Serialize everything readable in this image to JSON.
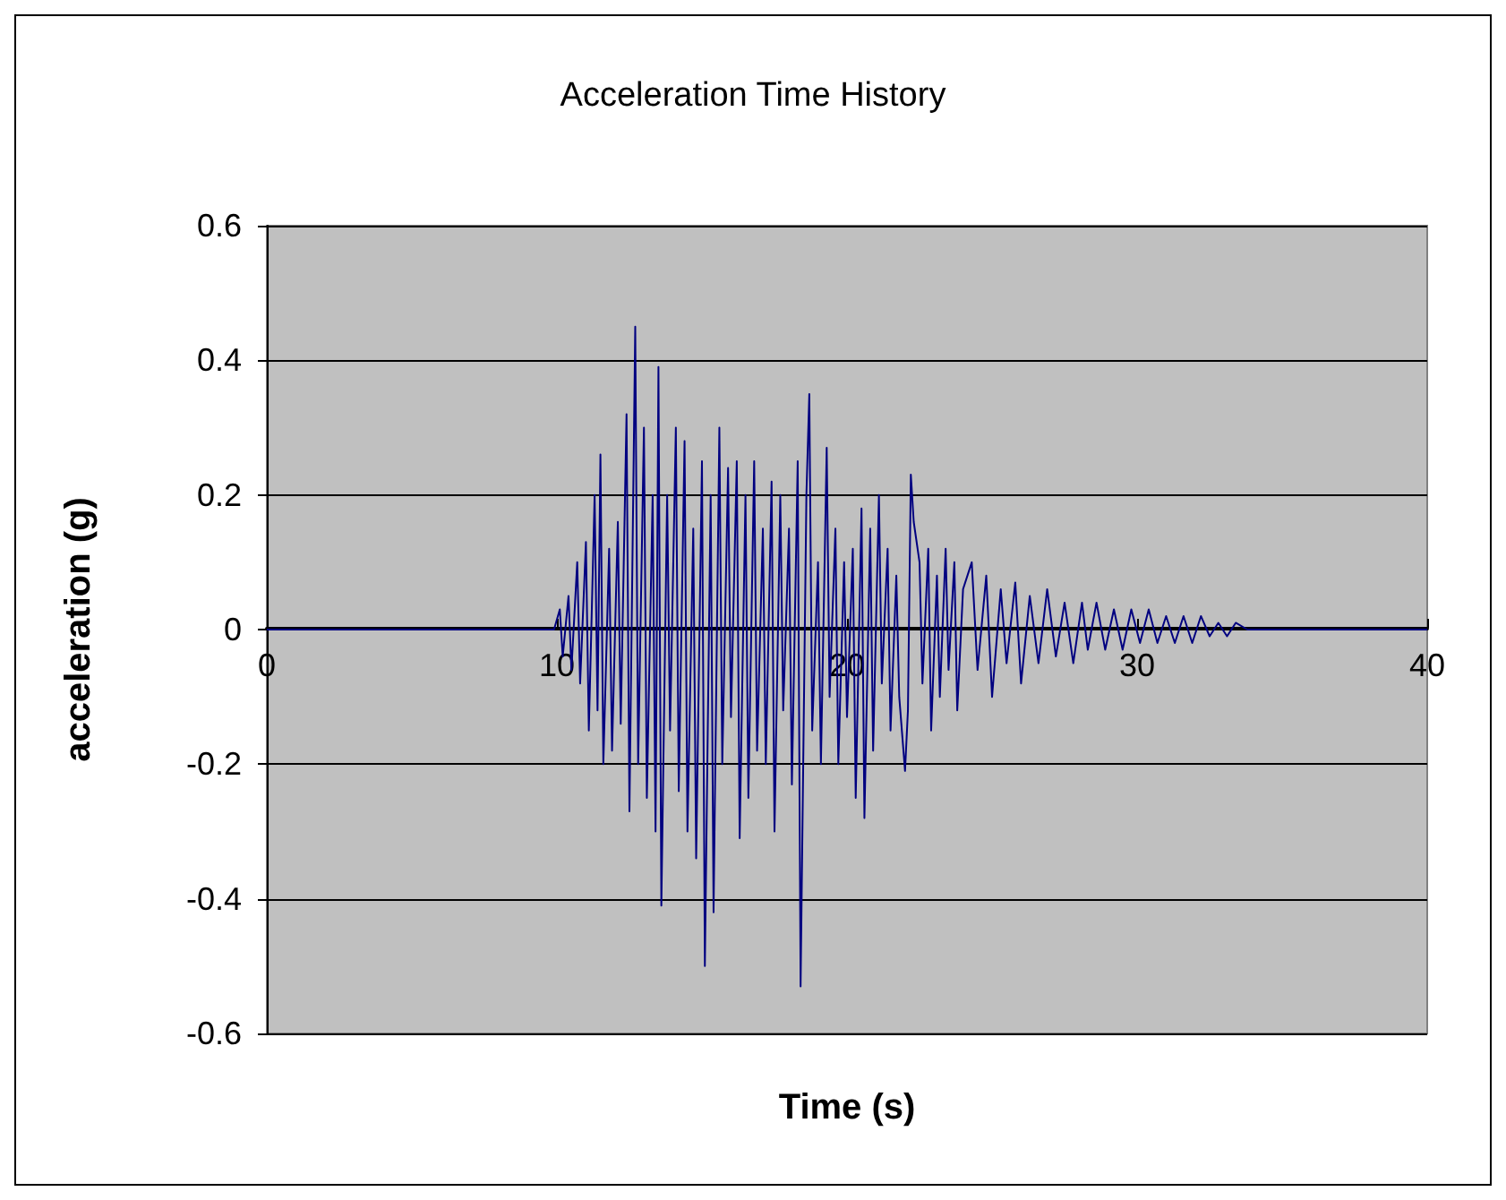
{
  "chart_data": {
    "type": "line",
    "title": "Acceleration Time History",
    "xlabel": "Time (s)",
    "ylabel": "acceleration (g)",
    "xlim": [
      0,
      40
    ],
    "xticks": [
      0,
      10,
      20,
      30,
      40
    ],
    "ylim": [
      -0.6,
      0.6
    ],
    "yticks": [
      -0.6,
      -0.4,
      -0.2,
      0,
      0.2,
      0.4,
      0.6
    ],
    "grid": "y",
    "marker": "none",
    "line_style": "solid",
    "series": [
      {
        "color": "#000080",
        "x": [
          0,
          9.9,
          10.1,
          10.2,
          10.4,
          10.5,
          10.7,
          10.8,
          11.0,
          11.1,
          11.3,
          11.4,
          11.5,
          11.6,
          11.8,
          11.9,
          12.1,
          12.2,
          12.4,
          12.5,
          12.7,
          12.8,
          13.0,
          13.1,
          13.3,
          13.4,
          13.5,
          13.6,
          13.8,
          13.9,
          14.1,
          14.2,
          14.4,
          14.5,
          14.7,
          14.8,
          15.0,
          15.1,
          15.3,
          15.4,
          15.6,
          15.7,
          15.9,
          16.0,
          16.2,
          16.3,
          16.5,
          16.6,
          16.8,
          16.9,
          17.1,
          17.2,
          17.4,
          17.5,
          17.7,
          17.8,
          18.0,
          18.1,
          18.3,
          18.4,
          18.6,
          18.7,
          18.8,
          19.0,
          19.1,
          19.3,
          19.4,
          19.6,
          19.7,
          19.9,
          20.0,
          20.2,
          20.3,
          20.5,
          20.6,
          20.8,
          20.9,
          21.1,
          21.2,
          21.4,
          21.5,
          21.7,
          21.8,
          22.0,
          22.1,
          22.2,
          22.3,
          22.5,
          22.6,
          22.8,
          22.9,
          23.1,
          23.2,
          23.4,
          23.5,
          23.7,
          23.8,
          24.0,
          24.3,
          24.5,
          24.8,
          25.0,
          25.3,
          25.5,
          25.8,
          26.0,
          26.3,
          26.6,
          26.9,
          27.2,
          27.5,
          27.8,
          28.1,
          28.3,
          28.6,
          28.9,
          29.2,
          29.5,
          29.8,
          30.1,
          30.4,
          30.7,
          31.0,
          31.3,
          31.6,
          31.9,
          32.2,
          32.5,
          32.8,
          33.1,
          33.4,
          33.8,
          40
        ],
        "values": [
          0,
          0,
          0.03,
          -0.04,
          0.05,
          -0.06,
          0.1,
          -0.08,
          0.13,
          -0.15,
          0.2,
          -0.12,
          0.26,
          -0.2,
          0.12,
          -0.18,
          0.16,
          -0.14,
          0.32,
          -0.27,
          0.45,
          -0.2,
          0.3,
          -0.25,
          0.2,
          -0.3,
          0.39,
          -0.41,
          0.2,
          -0.15,
          0.3,
          -0.24,
          0.28,
          -0.3,
          0.15,
          -0.34,
          0.25,
          -0.5,
          0.2,
          -0.42,
          0.3,
          -0.2,
          0.24,
          -0.13,
          0.25,
          -0.31,
          0.2,
          -0.25,
          0.25,
          -0.18,
          0.15,
          -0.2,
          0.22,
          -0.3,
          0.2,
          -0.12,
          0.15,
          -0.23,
          0.25,
          -0.53,
          0.2,
          0.35,
          -0.15,
          0.1,
          -0.2,
          0.27,
          -0.1,
          0.15,
          -0.2,
          0.1,
          -0.13,
          0.12,
          -0.25,
          0.18,
          -0.28,
          0.15,
          -0.18,
          0.2,
          -0.08,
          0.12,
          -0.15,
          0.08,
          -0.1,
          -0.21,
          -0.12,
          0.23,
          0.16,
          0.1,
          -0.08,
          0.12,
          -0.15,
          0.08,
          -0.1,
          0.12,
          -0.06,
          0.1,
          -0.12,
          0.06,
          0.1,
          -0.06,
          0.08,
          -0.1,
          0.06,
          -0.05,
          0.07,
          -0.08,
          0.05,
          -0.05,
          0.06,
          -0.04,
          0.04,
          -0.05,
          0.04,
          -0.03,
          0.04,
          -0.03,
          0.03,
          -0.03,
          0.03,
          -0.02,
          0.03,
          -0.02,
          0.02,
          -0.02,
          0.02,
          -0.02,
          0.02,
          -0.01,
          0.01,
          -0.01,
          0.01,
          0,
          0
        ]
      }
    ]
  }
}
